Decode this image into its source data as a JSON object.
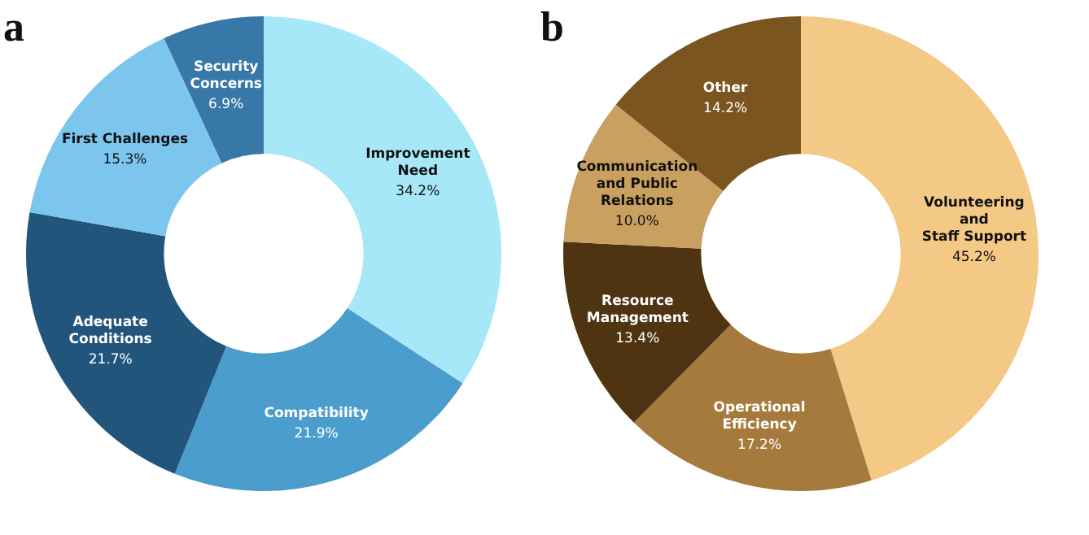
{
  "chart_data": [
    {
      "type": "donut",
      "title": "a",
      "categories": [
        "Improvement\nNeed",
        "Compatibility",
        "Adequate\nConditions",
        "First Challenges",
        "Security\nConcerns"
      ],
      "values": [
        34.2,
        21.9,
        21.7,
        15.3,
        6.9
      ],
      "value_labels": [
        "34.2%",
        "21.9%",
        "21.7%",
        "15.3%",
        "6.9%"
      ],
      "colors": [
        "#a6e8f8",
        "#4a9dcc",
        "#22557c",
        "#7cc6ee",
        "#3878a8"
      ],
      "legend": false
    },
    {
      "type": "donut",
      "title": "b",
      "categories": [
        "Volunteering\nand\nStaff Support",
        "Operational\nEfficiency",
        "Resource\nManagement",
        "Communication\nand Public\nRelations",
        "Other"
      ],
      "values": [
        45.2,
        17.2,
        13.4,
        10.0,
        14.2
      ],
      "value_labels": [
        "45.2%",
        "17.2%",
        "13.4%",
        "10.0%",
        "14.2%"
      ],
      "colors": [
        "#f4c985",
        "#a57a3c",
        "#4e3410",
        "#c9a060",
        "#7a5520"
      ],
      "legend": false
    }
  ]
}
